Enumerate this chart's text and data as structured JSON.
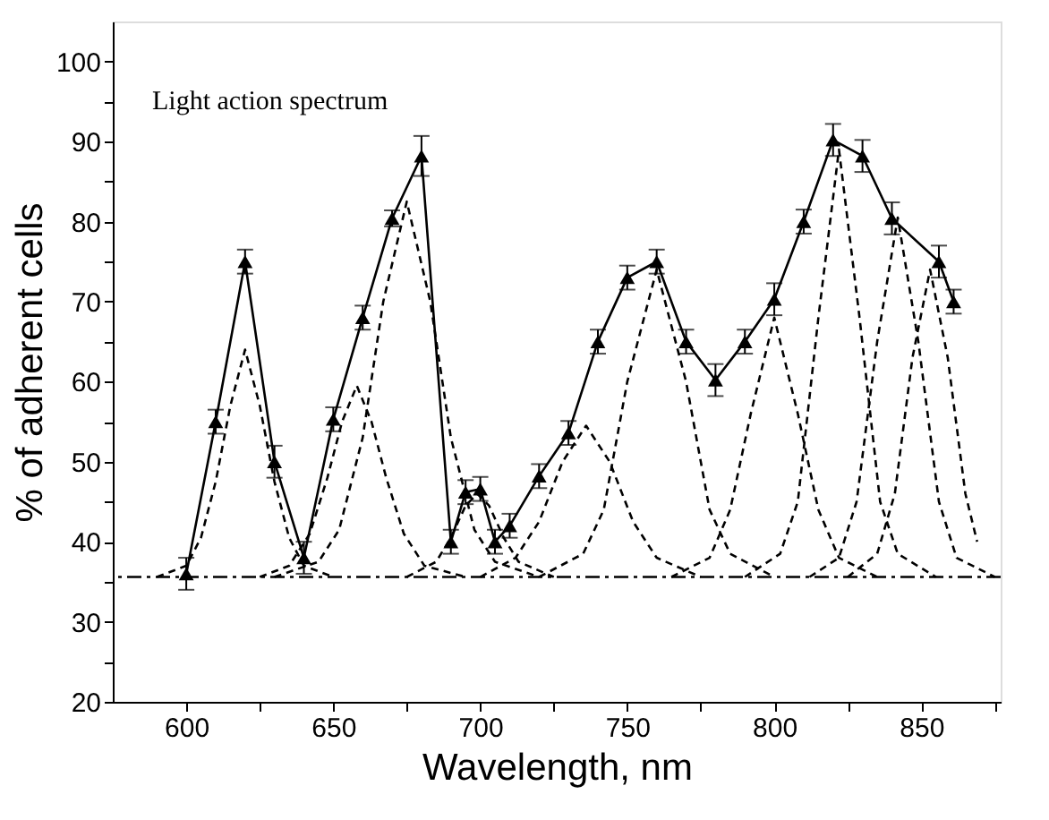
{
  "chart_data": {
    "type": "line",
    "xlabel": "Wavelength, nm",
    "ylabel": "% of adherent cells",
    "annotations": [
      "Light action spectrum"
    ],
    "xlim": [
      575,
      877
    ],
    "ylim": [
      20,
      105
    ],
    "xticks": [
      600,
      {
        "value": 625,
        "label": null
      },
      650,
      {
        "value": 675,
        "label": null
      },
      700,
      {
        "value": 725,
        "label": null
      },
      750,
      {
        "value": 775,
        "label": null
      },
      800,
      {
        "value": 825,
        "label": null
      },
      850,
      {
        "value": 875,
        "label": null
      }
    ],
    "yticks": [
      20,
      {
        "value": 25,
        "label": null
      },
      30,
      {
        "value": 35,
        "label": null
      },
      40,
      {
        "value": 45,
        "label": null
      },
      50,
      {
        "value": 55,
        "label": null
      },
      60,
      {
        "value": 65,
        "label": null
      },
      70,
      {
        "value": 75,
        "label": null
      },
      80,
      {
        "value": 85,
        "label": null
      },
      90,
      {
        "value": 95,
        "label": null
      },
      100
    ],
    "grid": false,
    "ref_lines": [
      {
        "axis": "y",
        "value": 35.6,
        "label": null,
        "color": "#000000",
        "line_style": "dashed"
      }
    ],
    "series": [
      {
        "type": "line",
        "color": "#000000",
        "marker": "triangle",
        "line_style": "solid",
        "x": [
          600,
          610,
          620,
          630,
          640,
          650,
          660,
          670,
          680,
          690,
          695,
          700,
          705,
          710,
          720,
          730,
          740,
          750,
          760,
          770,
          780,
          790,
          800,
          810,
          820,
          830,
          840,
          856,
          861
        ],
        "values": [
          36,
          55,
          75,
          50,
          38,
          55.3,
          68,
          80.4,
          88.2,
          40,
          46.2,
          46.6,
          40,
          42,
          48.2,
          53.6,
          65,
          73,
          75,
          65,
          60.2,
          65,
          70.3,
          80,
          90.2,
          88.2,
          80.4,
          75,
          70
        ],
        "errors": [
          2,
          1.5,
          1.5,
          2,
          2,
          1.5,
          1.5,
          1,
          2.5,
          1.5,
          1.5,
          1.5,
          1.5,
          1.5,
          1.5,
          1.5,
          1.5,
          1.5,
          1.5,
          1.5,
          2,
          1.5,
          2,
          1.5,
          2,
          2,
          2,
          2,
          1.5
        ]
      },
      {
        "type": "line",
        "color": "#000000",
        "marker": "none",
        "line_style": "dashed",
        "x": [
          590,
          600,
          605,
          610,
          615,
          620,
          625,
          630,
          635,
          640,
          650
        ],
        "values": [
          35.6,
          37,
          40.5,
          47.5,
          57,
          64,
          57,
          47.5,
          40.5,
          37,
          35.6
        ]
      },
      {
        "type": "line",
        "color": "#000000",
        "marker": "none",
        "line_style": "dashed",
        "x": [
          625,
          635,
          642,
          648,
          653,
          658,
          663,
          668,
          674,
          681,
          695
        ],
        "values": [
          35.6,
          37,
          41,
          48,
          55,
          59.5,
          55,
          48,
          41,
          37,
          35.6
        ]
      },
      {
        "type": "line",
        "color": "#000000",
        "marker": "none",
        "line_style": "dashed",
        "x": [
          630,
          645,
          652,
          660,
          667,
          675,
          683,
          690,
          698,
          705,
          720
        ],
        "values": [
          35.6,
          37.5,
          41.5,
          53,
          70,
          82.5,
          70,
          53,
          41.5,
          37.5,
          35.6
        ]
      },
      {
        "type": "line",
        "color": "#000000",
        "marker": "none",
        "line_style": "dashed",
        "x": [
          675,
          685,
          690,
          695,
          699,
          703,
          708,
          713,
          725
        ],
        "values": [
          35.6,
          37.5,
          40.5,
          44.5,
          46,
          44.5,
          40.5,
          37.5,
          35.6
        ]
      },
      {
        "type": "line",
        "color": "#000000",
        "marker": "none",
        "line_style": "dashed",
        "x": [
          700,
          712,
          720,
          728,
          736,
          744,
          752,
          760,
          775
        ],
        "values": [
          35.6,
          38,
          42.5,
          50,
          54.5,
          50,
          42.5,
          38,
          35.6
        ]
      },
      {
        "type": "line",
        "color": "#000000",
        "marker": "none",
        "line_style": "dashed",
        "x": [
          720,
          735,
          742,
          750,
          760,
          770,
          778,
          785,
          800
        ],
        "values": [
          35.6,
          38.5,
          44,
          60,
          74,
          60,
          44,
          38.5,
          35.6
        ]
      },
      {
        "type": "line",
        "color": "#000000",
        "marker": "none",
        "line_style": "dashed",
        "x": [
          765,
          778,
          785,
          792,
          800,
          808,
          815,
          822,
          835
        ],
        "values": [
          35.6,
          38,
          44,
          56,
          68,
          56,
          44,
          38,
          35.6
        ]
      },
      {
        "type": "line",
        "color": "#000000",
        "marker": "none",
        "line_style": "dashed",
        "x": [
          790,
          802,
          808,
          815,
          822,
          829,
          836,
          842,
          855
        ],
        "values": [
          35.6,
          38.5,
          45,
          68,
          89,
          68,
          45,
          38.5,
          35.6
        ]
      },
      {
        "type": "line",
        "color": "#000000",
        "marker": "none",
        "line_style": "dashed",
        "x": [
          812,
          822,
          828,
          835,
          842,
          849,
          856,
          862,
          875
        ],
        "values": [
          35.6,
          38,
          45,
          65,
          80.5,
          65,
          45,
          38,
          35.6
        ]
      },
      {
        "type": "line",
        "color": "#000000",
        "marker": "none",
        "line_style": "dashed",
        "x": [
          825,
          835,
          841,
          847,
          853,
          859,
          865,
          869
        ],
        "values": [
          35.6,
          38.5,
          46,
          63,
          74,
          63,
          46,
          40
        ]
      }
    ]
  }
}
